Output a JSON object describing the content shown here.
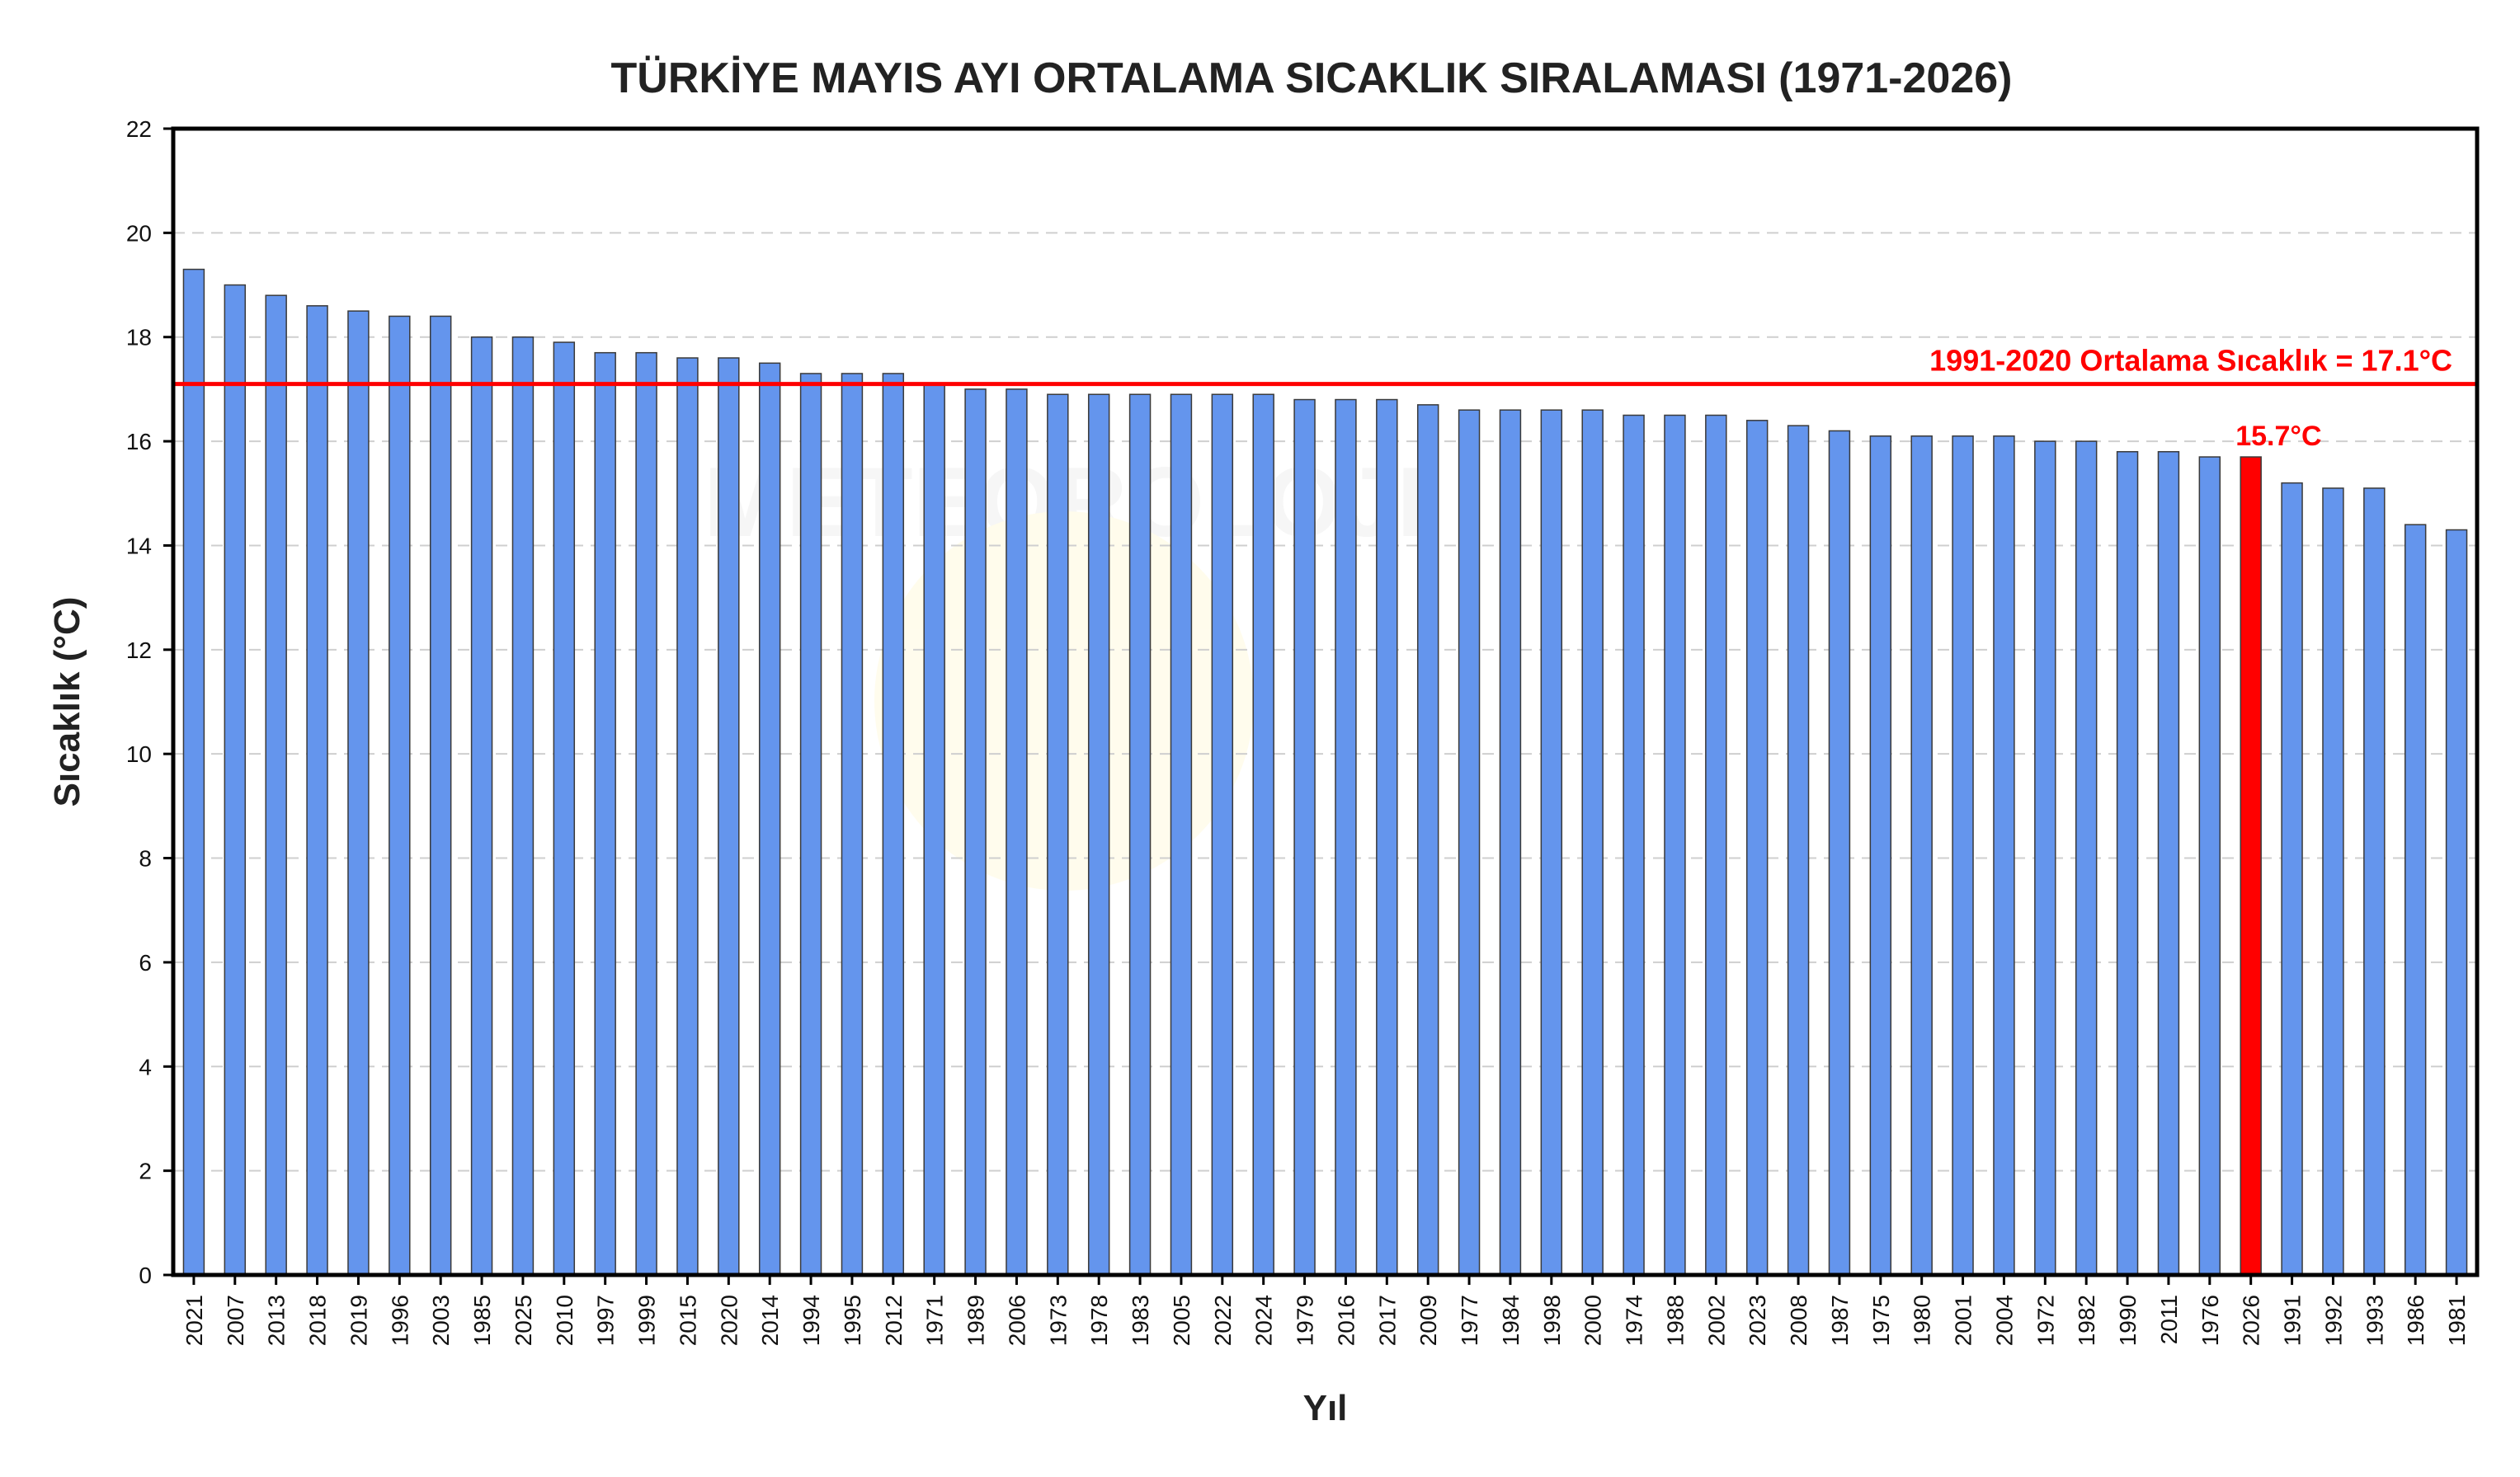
{
  "chart_data": {
    "type": "bar",
    "title": "TÜRKİYE MAYIS AYI ORTALAMA SICAKLIK SIRALAMASI (1971-2026)",
    "xlabel": "Yıl",
    "ylabel": "Sıcaklık (°C)",
    "ylim": [
      0,
      22
    ],
    "yticks": [
      "0",
      "2",
      "4",
      "6",
      "8",
      "10",
      "12",
      "14",
      "16",
      "18",
      "20",
      "22"
    ],
    "grid": true,
    "categories": [
      "2021",
      "2007",
      "2013",
      "2018",
      "2019",
      "1996",
      "2003",
      "1985",
      "2025",
      "2010",
      "1997",
      "1999",
      "2015",
      "2020",
      "2014",
      "1994",
      "1995",
      "2012",
      "1971",
      "1989",
      "2006",
      "1973",
      "1978",
      "1983",
      "2005",
      "2022",
      "2024",
      "1979",
      "2016",
      "2017",
      "2009",
      "1977",
      "1984",
      "1998",
      "2000",
      "1974",
      "1988",
      "2002",
      "2023",
      "2008",
      "1987",
      "1975",
      "1980",
      "2001",
      "2004",
      "1972",
      "1982",
      "1990",
      "2011",
      "1976",
      "2026",
      "1991",
      "1992",
      "1993",
      "1986",
      "1981"
    ],
    "values": [
      19.3,
      19.0,
      18.8,
      18.6,
      18.5,
      18.4,
      18.4,
      18.0,
      18.0,
      17.9,
      17.7,
      17.7,
      17.6,
      17.6,
      17.5,
      17.3,
      17.3,
      17.3,
      17.1,
      17.0,
      17.0,
      16.9,
      16.9,
      16.9,
      16.9,
      16.9,
      16.9,
      16.8,
      16.8,
      16.8,
      16.7,
      16.6,
      16.6,
      16.6,
      16.6,
      16.5,
      16.5,
      16.5,
      16.4,
      16.3,
      16.2,
      16.1,
      16.1,
      16.1,
      16.1,
      16.0,
      16.0,
      15.8,
      15.8,
      15.7,
      15.7,
      15.2,
      15.1,
      15.1,
      14.4,
      14.3
    ],
    "bar_color": "#6495ed",
    "highlight": {
      "category": "2026",
      "color": "#ff0000",
      "label": "15.7°C"
    },
    "reference_line": {
      "value": 17.1,
      "color": "#ff0000",
      "label": "1991-2020 Ortalama Sıcaklık = 17.1°C"
    },
    "watermark": "METEOROLOJI"
  }
}
